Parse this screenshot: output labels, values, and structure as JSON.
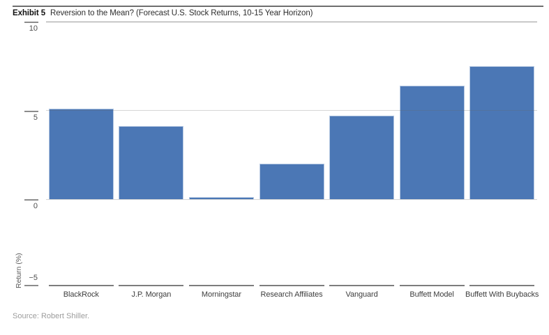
{
  "header": {
    "exhibit_label": "Exhibit 5",
    "title": "Reversion to the Mean? (Forecast U.S. Stock Returns, 10-15 Year Horizon)"
  },
  "chart_data": {
    "type": "bar",
    "title": "Reversion to the Mean? (Forecast U.S. Stock Returns, 10-15 Year Horizon)",
    "categories": [
      "BlackRock",
      "J.P. Morgan",
      "Morningstar",
      "Research Affiliates",
      "Vanguard",
      "Buffett Model",
      "Buffett With Buybacks"
    ],
    "values": [
      5.1,
      4.1,
      0.1,
      2.0,
      4.7,
      6.4,
      7.5
    ],
    "xlabel": "",
    "ylabel": "Return (%)",
    "ylim": [
      -5,
      10
    ],
    "yticks": [
      10,
      5,
      0,
      -5
    ],
    "ytick_labels": [
      "10",
      "5",
      "0",
      "−5"
    ],
    "grid": true,
    "legend": false,
    "bar_color": "#4b77b5",
    "bar_border_color": "#b5c8e2",
    "axis_color": "#8c8c8c",
    "gridline_color": "#d9d9d9"
  },
  "footer": {
    "source": "Source: Robert Shiller."
  }
}
